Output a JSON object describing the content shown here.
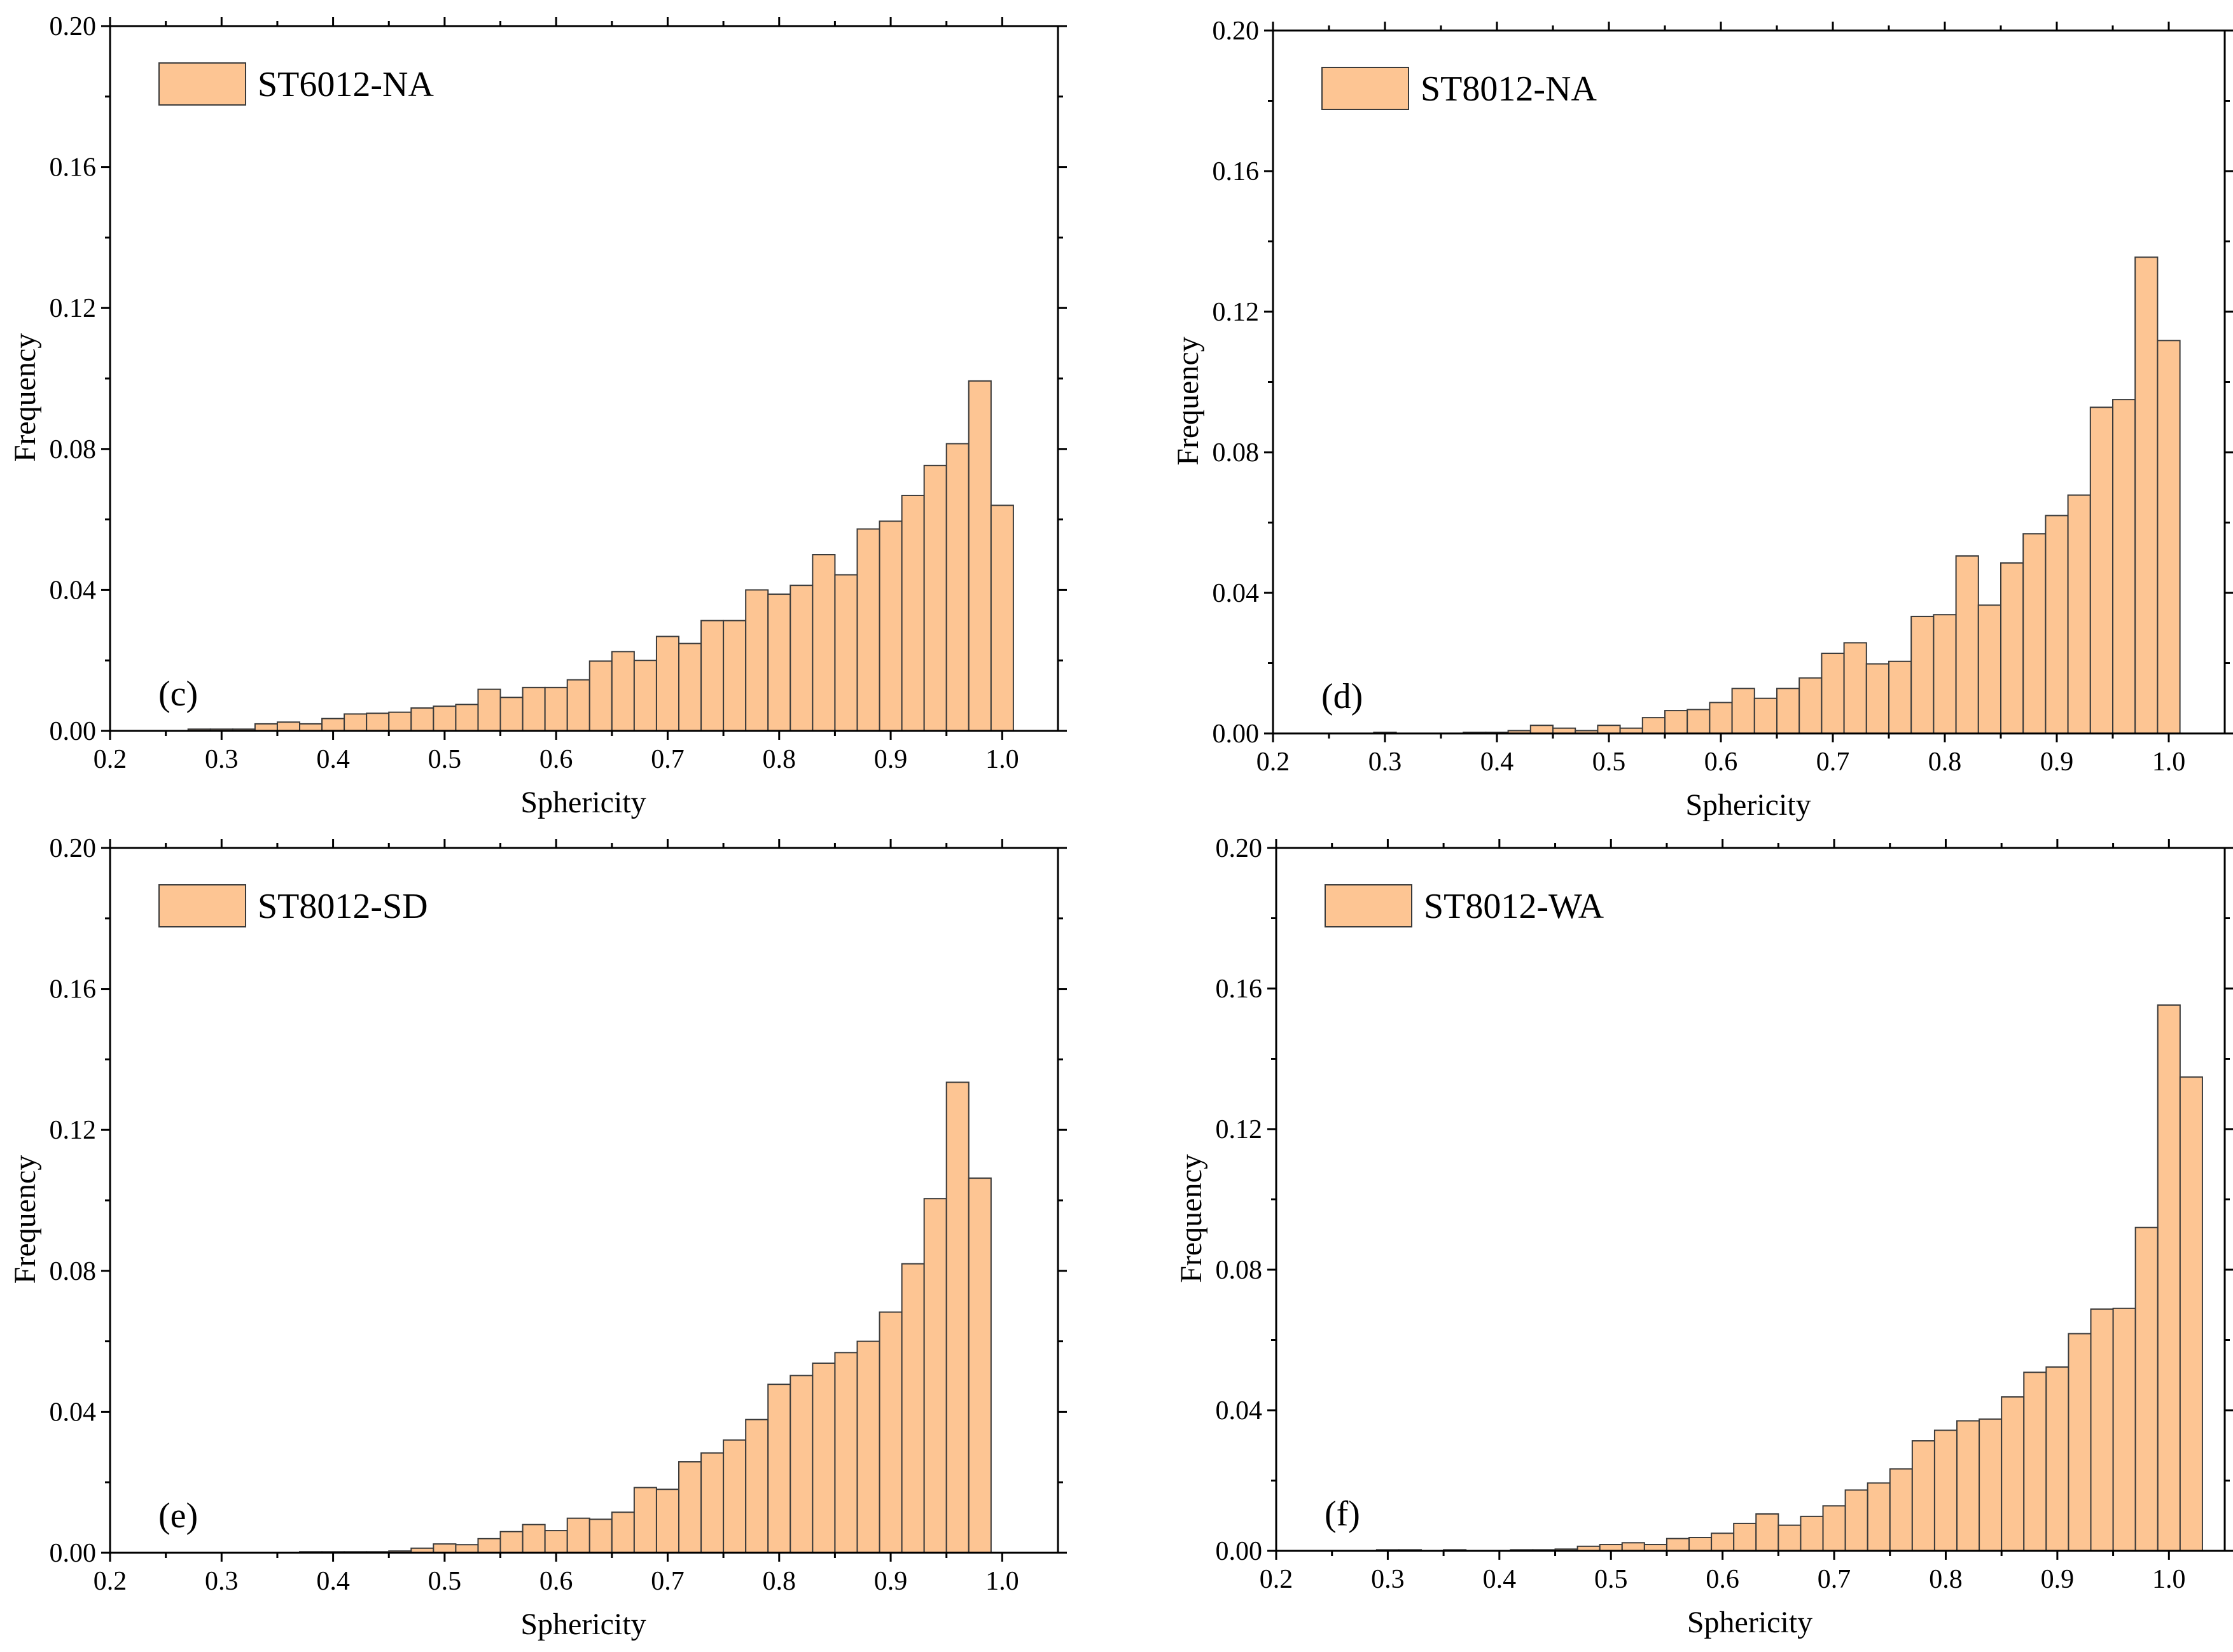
{
  "colors": {
    "bar_fill": "#FDC593",
    "bar_stroke": "#3a3a3a",
    "axis": "#000000"
  },
  "chart_data": [
    {
      "type": "bar",
      "panel_label": "(c)",
      "legend": "ST6012-NA",
      "xlabel": "Sphericity",
      "ylabel": "Frequency",
      "xlim": [
        0.2,
        1.05
      ],
      "ylim": [
        0,
        0.2
      ],
      "xticks": [
        "0.2",
        "0.3",
        "0.4",
        "0.5",
        "0.6",
        "0.7",
        "0.8",
        "0.9",
        "1.0"
      ],
      "yticks": [
        "0.00",
        "0.04",
        "0.08",
        "0.12",
        "0.16",
        "0.20"
      ],
      "bin_start": 0.27,
      "bin_width": 0.02,
      "values": [
        0.0005,
        0.0005,
        0.0005,
        0.002,
        0.0025,
        0.002,
        0.0035,
        0.0048,
        0.005,
        0.0053,
        0.0065,
        0.007,
        0.0075,
        0.0118,
        0.0095,
        0.0123,
        0.0123,
        0.0145,
        0.0198,
        0.0225,
        0.02,
        0.0268,
        0.0248,
        0.0313,
        0.0313,
        0.04,
        0.0388,
        0.0413,
        0.05,
        0.0443,
        0.0573,
        0.0595,
        0.0668,
        0.0753,
        0.0815,
        0.0993,
        0.064
      ]
    },
    {
      "type": "bar",
      "panel_label": "(d)",
      "legend": "ST8012-NA",
      "xlabel": "Sphericity",
      "ylabel": "Frequency",
      "xlim": [
        0.2,
        1.05
      ],
      "ylim": [
        0,
        0.2
      ],
      "xticks": [
        "0.2",
        "0.3",
        "0.4",
        "0.5",
        "0.6",
        "0.7",
        "0.8",
        "0.9",
        "1.0"
      ],
      "yticks": [
        "0.00",
        "0.04",
        "0.08",
        "0.12",
        "0.16",
        "0.20"
      ],
      "bin_start": 0.29,
      "bin_width": 0.02,
      "values": [
        0.0003,
        0.0,
        0.0,
        0.0,
        0.0003,
        0.0003,
        0.0008,
        0.0023,
        0.0015,
        0.0008,
        0.0023,
        0.0015,
        0.0045,
        0.0065,
        0.0068,
        0.0088,
        0.0128,
        0.01,
        0.0128,
        0.0158,
        0.0228,
        0.0258,
        0.0198,
        0.0205,
        0.0333,
        0.0338,
        0.0505,
        0.0365,
        0.0485,
        0.0568,
        0.062,
        0.0678,
        0.0928,
        0.095,
        0.1355,
        0.1118
      ]
    },
    {
      "type": "bar",
      "panel_label": "(e)",
      "legend": "ST8012-SD",
      "xlabel": "Sphericity",
      "ylabel": "Frequency",
      "xlim": [
        0.2,
        1.05
      ],
      "ylim": [
        0,
        0.2
      ],
      "xticks": [
        "0.2",
        "0.3",
        "0.4",
        "0.5",
        "0.6",
        "0.7",
        "0.8",
        "0.9",
        "1.0"
      ],
      "yticks": [
        "0.00",
        "0.04",
        "0.08",
        "0.12",
        "0.16",
        "0.20"
      ],
      "bin_start": 0.37,
      "bin_width": 0.02,
      "values": [
        0.0003,
        0.0003,
        0.0003,
        0.0003,
        0.0005,
        0.0013,
        0.0025,
        0.0023,
        0.004,
        0.006,
        0.008,
        0.0063,
        0.0098,
        0.0095,
        0.0115,
        0.0185,
        0.018,
        0.0258,
        0.0283,
        0.032,
        0.0378,
        0.0478,
        0.0503,
        0.0538,
        0.0568,
        0.06,
        0.0683,
        0.082,
        0.1005,
        0.1335,
        0.1063
      ]
    },
    {
      "type": "bar",
      "panel_label": "(f)",
      "legend": "ST8012-WA",
      "xlabel": "Sphericity",
      "ylabel": "Frequency",
      "xlim": [
        0.2,
        1.05
      ],
      "ylim": [
        0,
        0.2
      ],
      "xticks": [
        "0.2",
        "0.3",
        "0.4",
        "0.5",
        "0.6",
        "0.7",
        "0.8",
        "0.9",
        "1.0"
      ],
      "yticks": [
        "0.00",
        "0.04",
        "0.08",
        "0.12",
        "0.16",
        "0.20"
      ],
      "bin_start": 0.29,
      "bin_width": 0.02,
      "values": [
        0.0003,
        0.0003,
        0.0,
        0.0003,
        0.0,
        0.0,
        0.0003,
        0.0003,
        0.0005,
        0.0013,
        0.0018,
        0.0023,
        0.0018,
        0.0035,
        0.0038,
        0.005,
        0.0078,
        0.0105,
        0.0073,
        0.0098,
        0.0128,
        0.0173,
        0.0193,
        0.0233,
        0.0313,
        0.0343,
        0.037,
        0.0375,
        0.0438,
        0.0508,
        0.0523,
        0.0618,
        0.0688,
        0.069,
        0.092,
        0.1553,
        0.1348
      ]
    }
  ]
}
